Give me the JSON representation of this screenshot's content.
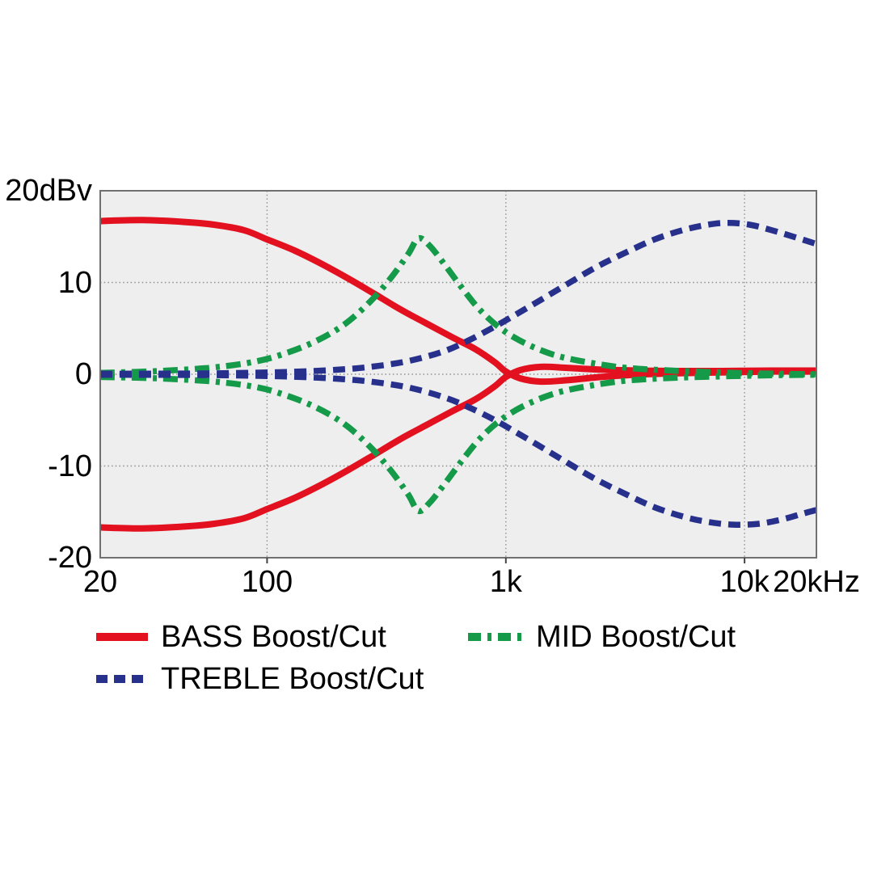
{
  "chart_data": {
    "type": "line",
    "title": "",
    "x_axis": {
      "scale": "log",
      "unit": "Hz",
      "range_hz": [
        20,
        20000
      ],
      "ticks": [
        {
          "label": "20",
          "hz": 20
        },
        {
          "label": "100",
          "hz": 100
        },
        {
          "label": "1k",
          "hz": 1000
        },
        {
          "label": "10k",
          "hz": 10000
        },
        {
          "label": "20kHz",
          "hz": 20000
        }
      ]
    },
    "y_axis": {
      "unit": "dBv",
      "range_db": [
        -20,
        20
      ],
      "ticks": [
        {
          "label": "20dBv",
          "db": 20
        },
        {
          "label": "10",
          "db": 10
        },
        {
          "label": "0",
          "db": 0
        },
        {
          "label": "-10",
          "db": -10
        },
        {
          "label": "-20",
          "db": -20
        }
      ]
    },
    "grid": {
      "x_gridlines_hz": [
        100,
        1000,
        10000
      ],
      "y_gridlines_db": [
        10,
        0,
        -10
      ],
      "style": "dotted",
      "color": "#8f8f8f",
      "plot_bg": "#eeeeee",
      "border_color": "#707070",
      "tick_mark_color": "#444444"
    },
    "series": [
      {
        "name": "BASS Boost",
        "color": "#e3101f",
        "dash": "solid",
        "width": 8,
        "points": [
          [
            20,
            16.7
          ],
          [
            30,
            16.8
          ],
          [
            45,
            16.6
          ],
          [
            60,
            16.3
          ],
          [
            80,
            15.7
          ],
          [
            100,
            14.7
          ],
          [
            130,
            13.5
          ],
          [
            170,
            12.0
          ],
          [
            220,
            10.4
          ],
          [
            280,
            8.8
          ],
          [
            360,
            7.1
          ],
          [
            460,
            5.6
          ],
          [
            600,
            4.0
          ],
          [
            750,
            2.7
          ],
          [
            900,
            1.3
          ],
          [
            1000,
            0.3
          ],
          [
            1150,
            -0.45
          ],
          [
            1400,
            -0.8
          ],
          [
            1800,
            -0.65
          ],
          [
            2500,
            -0.3
          ],
          [
            3500,
            -0.05
          ],
          [
            5000,
            0.1
          ],
          [
            8000,
            0.2
          ],
          [
            13000,
            0.3
          ],
          [
            20000,
            0.3
          ]
        ]
      },
      {
        "name": "BASS Cut",
        "color": "#e3101f",
        "dash": "solid",
        "width": 8,
        "points": [
          [
            20,
            -16.7
          ],
          [
            30,
            -16.8
          ],
          [
            45,
            -16.6
          ],
          [
            60,
            -16.3
          ],
          [
            80,
            -15.7
          ],
          [
            100,
            -14.7
          ],
          [
            130,
            -13.5
          ],
          [
            170,
            -12.0
          ],
          [
            220,
            -10.4
          ],
          [
            280,
            -8.8
          ],
          [
            360,
            -7.1
          ],
          [
            460,
            -5.6
          ],
          [
            600,
            -4.0
          ],
          [
            750,
            -2.7
          ],
          [
            900,
            -1.3
          ],
          [
            1000,
            -0.3
          ],
          [
            1150,
            0.45
          ],
          [
            1400,
            0.8
          ],
          [
            1800,
            0.7
          ],
          [
            2500,
            0.5
          ],
          [
            3500,
            0.4
          ],
          [
            5000,
            0.35
          ],
          [
            8000,
            0.35
          ],
          [
            13000,
            0.4
          ],
          [
            20000,
            0.4
          ]
        ]
      },
      {
        "name": "MID Boost",
        "color": "#149a48",
        "dash": "dash-dot",
        "width": 7.5,
        "points": [
          [
            20,
            0.15
          ],
          [
            35,
            0.35
          ],
          [
            60,
            0.75
          ],
          [
            90,
            1.4
          ],
          [
            120,
            2.3
          ],
          [
            160,
            3.6
          ],
          [
            210,
            5.4
          ],
          [
            270,
            7.9
          ],
          [
            330,
            10.5
          ],
          [
            390,
            13.1
          ],
          [
            430,
            14.8
          ],
          [
            480,
            14.0
          ],
          [
            560,
            11.8
          ],
          [
            660,
            9.3
          ],
          [
            780,
            7.0
          ],
          [
            950,
            5.0
          ],
          [
            1200,
            3.4
          ],
          [
            1600,
            2.1
          ],
          [
            2200,
            1.3
          ],
          [
            3200,
            0.7
          ],
          [
            5000,
            0.4
          ],
          [
            9000,
            0.15
          ],
          [
            14000,
            0.05
          ],
          [
            20000,
            0.0
          ]
        ]
      },
      {
        "name": "MID Cut",
        "color": "#149a48",
        "dash": "dash-dot",
        "width": 7.5,
        "points": [
          [
            20,
            -0.3
          ],
          [
            35,
            -0.45
          ],
          [
            60,
            -0.8
          ],
          [
            90,
            -1.4
          ],
          [
            120,
            -2.3
          ],
          [
            160,
            -3.6
          ],
          [
            210,
            -5.4
          ],
          [
            270,
            -7.9
          ],
          [
            330,
            -10.5
          ],
          [
            390,
            -13.1
          ],
          [
            430,
            -14.9
          ],
          [
            480,
            -14.0
          ],
          [
            560,
            -11.8
          ],
          [
            660,
            -9.3
          ],
          [
            780,
            -7.0
          ],
          [
            950,
            -5.0
          ],
          [
            1200,
            -3.4
          ],
          [
            1600,
            -2.1
          ],
          [
            2200,
            -1.3
          ],
          [
            3200,
            -0.7
          ],
          [
            5000,
            -0.4
          ],
          [
            9000,
            -0.2
          ],
          [
            14000,
            -0.1
          ],
          [
            20000,
            -0.05
          ]
        ]
      },
      {
        "name": "TREBLE Boost",
        "color": "#27318c",
        "dash": "dashed",
        "width": 7.5,
        "points": [
          [
            20,
            0.05
          ],
          [
            60,
            0.1
          ],
          [
            120,
            0.25
          ],
          [
            200,
            0.5
          ],
          [
            290,
            0.9
          ],
          [
            400,
            1.5
          ],
          [
            550,
            2.5
          ],
          [
            700,
            3.7
          ],
          [
            900,
            5.2
          ],
          [
            1100,
            6.5
          ],
          [
            1400,
            8.1
          ],
          [
            1800,
            9.8
          ],
          [
            2400,
            11.7
          ],
          [
            3200,
            13.3
          ],
          [
            4200,
            14.7
          ],
          [
            5500,
            15.7
          ],
          [
            7000,
            16.3
          ],
          [
            8500,
            16.5
          ],
          [
            10500,
            16.3
          ],
          [
            13000,
            15.7
          ],
          [
            16000,
            15.0
          ],
          [
            20000,
            14.2
          ]
        ]
      },
      {
        "name": "TREBLE Cut",
        "color": "#27318c",
        "dash": "dashed",
        "width": 7.5,
        "points": [
          [
            20,
            -0.05
          ],
          [
            60,
            -0.1
          ],
          [
            120,
            -0.25
          ],
          [
            200,
            -0.5
          ],
          [
            290,
            -0.9
          ],
          [
            400,
            -1.5
          ],
          [
            550,
            -2.5
          ],
          [
            700,
            -3.6
          ],
          [
            900,
            -5.0
          ],
          [
            1100,
            -6.3
          ],
          [
            1400,
            -7.9
          ],
          [
            1800,
            -9.6
          ],
          [
            2400,
            -11.5
          ],
          [
            3200,
            -13.1
          ],
          [
            4200,
            -14.5
          ],
          [
            5500,
            -15.5
          ],
          [
            7000,
            -16.1
          ],
          [
            9000,
            -16.4
          ],
          [
            11500,
            -16.3
          ],
          [
            14500,
            -15.8
          ],
          [
            17500,
            -15.2
          ],
          [
            20000,
            -14.8
          ]
        ]
      }
    ],
    "legend": [
      {
        "label": "BASS Boost/Cut",
        "color": "#e3101f",
        "dash": "solid"
      },
      {
        "label": "MID Boost/Cut",
        "color": "#149a48",
        "dash": "dash-dot"
      },
      {
        "label": "TREBLE Boost/Cut",
        "color": "#27318c",
        "dash": "dashed"
      }
    ]
  }
}
